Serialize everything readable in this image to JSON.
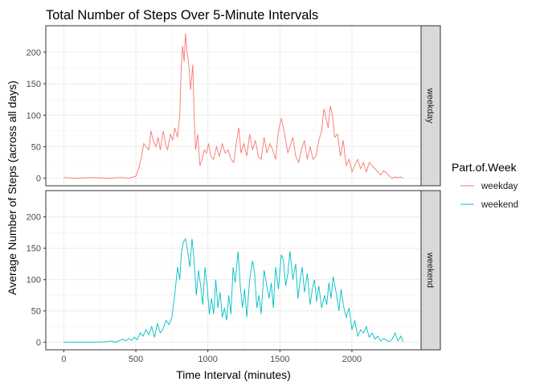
{
  "chart_data": {
    "type": "line",
    "title": "Total Number of Steps Over 5-Minute Intervals",
    "xlabel": "Time Interval (minutes)",
    "ylabel": "Average Number of Steps (across all days)",
    "xlim": [
      -125,
      2480
    ],
    "ylim": [
      -12,
      242
    ],
    "xticks": [
      0,
      500,
      1000,
      1500,
      2000
    ],
    "yticks": [
      0,
      50,
      100,
      150,
      200
    ],
    "grid": true,
    "legend": {
      "title": "Part.of.Week",
      "position": "right"
    },
    "panels": [
      {
        "strip_label": "weekday",
        "series": {
          "name": "weekday",
          "color": "#F8766D",
          "x": [
            0,
            100,
            200,
            300,
            400,
            450,
            500,
            520,
            540,
            555,
            570,
            590,
            605,
            620,
            640,
            655,
            670,
            690,
            705,
            720,
            740,
            755,
            770,
            790,
            805,
            815,
            825,
            835,
            845,
            855,
            865,
            880,
            895,
            905,
            915,
            930,
            945,
            960,
            975,
            990,
            1005,
            1020,
            1040,
            1060,
            1080,
            1100,
            1120,
            1140,
            1160,
            1180,
            1200,
            1215,
            1230,
            1250,
            1270,
            1290,
            1310,
            1330,
            1350,
            1370,
            1390,
            1410,
            1430,
            1450,
            1470,
            1490,
            1510,
            1525,
            1540,
            1555,
            1570,
            1590,
            1610,
            1630,
            1650,
            1670,
            1690,
            1710,
            1730,
            1750,
            1770,
            1790,
            1805,
            1820,
            1835,
            1850,
            1865,
            1880,
            1900,
            1920,
            1940,
            1960,
            1980,
            2000,
            2020,
            2040,
            2060,
            2080,
            2100,
            2120,
            2140,
            2160,
            2180,
            2200,
            2220,
            2240,
            2260,
            2280,
            2300,
            2320,
            2340,
            2355
          ],
          "y": [
            1,
            0,
            1,
            0,
            1,
            0,
            3,
            15,
            35,
            55,
            50,
            45,
            75,
            60,
            50,
            65,
            45,
            75,
            55,
            45,
            70,
            60,
            80,
            65,
            100,
            175,
            210,
            185,
            230,
            200,
            185,
            140,
            180,
            100,
            45,
            70,
            20,
            30,
            45,
            40,
            55,
            35,
            30,
            50,
            35,
            55,
            40,
            45,
            30,
            25,
            60,
            80,
            40,
            55,
            35,
            70,
            45,
            60,
            35,
            30,
            65,
            40,
            55,
            45,
            30,
            75,
            95,
            80,
            60,
            40,
            50,
            65,
            35,
            25,
            45,
            60,
            30,
            50,
            30,
            35,
            60,
            75,
            110,
            95,
            80,
            115,
            100,
            65,
            70,
            35,
            60,
            20,
            30,
            10,
            20,
            30,
            15,
            25,
            10,
            25,
            20,
            15,
            10,
            5,
            12,
            8,
            3,
            0,
            2,
            1,
            2,
            0
          ]
        }
      },
      {
        "strip_label": "weekend",
        "series": {
          "name": "weekend",
          "color": "#00BFC4",
          "x": [
            0,
            100,
            200,
            300,
            330,
            360,
            390,
            410,
            430,
            450,
            470,
            490,
            510,
            530,
            550,
            570,
            590,
            610,
            630,
            650,
            670,
            690,
            710,
            730,
            750,
            770,
            790,
            805,
            815,
            830,
            845,
            860,
            875,
            890,
            905,
            920,
            935,
            950,
            965,
            980,
            995,
            1010,
            1025,
            1040,
            1055,
            1070,
            1085,
            1100,
            1115,
            1130,
            1145,
            1160,
            1175,
            1190,
            1210,
            1225,
            1240,
            1255,
            1270,
            1290,
            1310,
            1325,
            1340,
            1355,
            1370,
            1390,
            1410,
            1425,
            1440,
            1455,
            1470,
            1490,
            1510,
            1525,
            1540,
            1555,
            1570,
            1590,
            1610,
            1625,
            1640,
            1655,
            1670,
            1690,
            1710,
            1725,
            1740,
            1755,
            1770,
            1790,
            1810,
            1825,
            1840,
            1855,
            1870,
            1890,
            1910,
            1925,
            1940,
            1960,
            1980,
            2000,
            2020,
            2040,
            2060,
            2080,
            2100,
            2120,
            2140,
            2160,
            2180,
            2200,
            2220,
            2240,
            2260,
            2280,
            2300,
            2320,
            2340,
            2355
          ],
          "y": [
            0,
            0,
            0,
            1,
            2,
            0,
            3,
            5,
            2,
            6,
            3,
            8,
            4,
            15,
            10,
            20,
            12,
            25,
            8,
            30,
            15,
            22,
            35,
            28,
            40,
            75,
            120,
            100,
            140,
            160,
            165,
            145,
            120,
            165,
            130,
            75,
            115,
            90,
            60,
            120,
            90,
            45,
            70,
            45,
            100,
            55,
            80,
            40,
            55,
            35,
            75,
            45,
            120,
            95,
            145,
            90,
            55,
            85,
            40,
            100,
            130,
            110,
            55,
            75,
            45,
            115,
            90,
            70,
            95,
            55,
            120,
            85,
            140,
            130,
            90,
            110,
            145,
            100,
            125,
            70,
            100,
            120,
            80,
            110,
            60,
            85,
            100,
            65,
            90,
            55,
            75,
            60,
            95,
            70,
            105,
            80,
            50,
            85,
            60,
            40,
            55,
            20,
            35,
            10,
            20,
            15,
            25,
            8,
            15,
            5,
            10,
            2,
            6,
            3,
            1,
            5,
            15,
            2,
            10,
            1
          ]
        }
      }
    ]
  }
}
